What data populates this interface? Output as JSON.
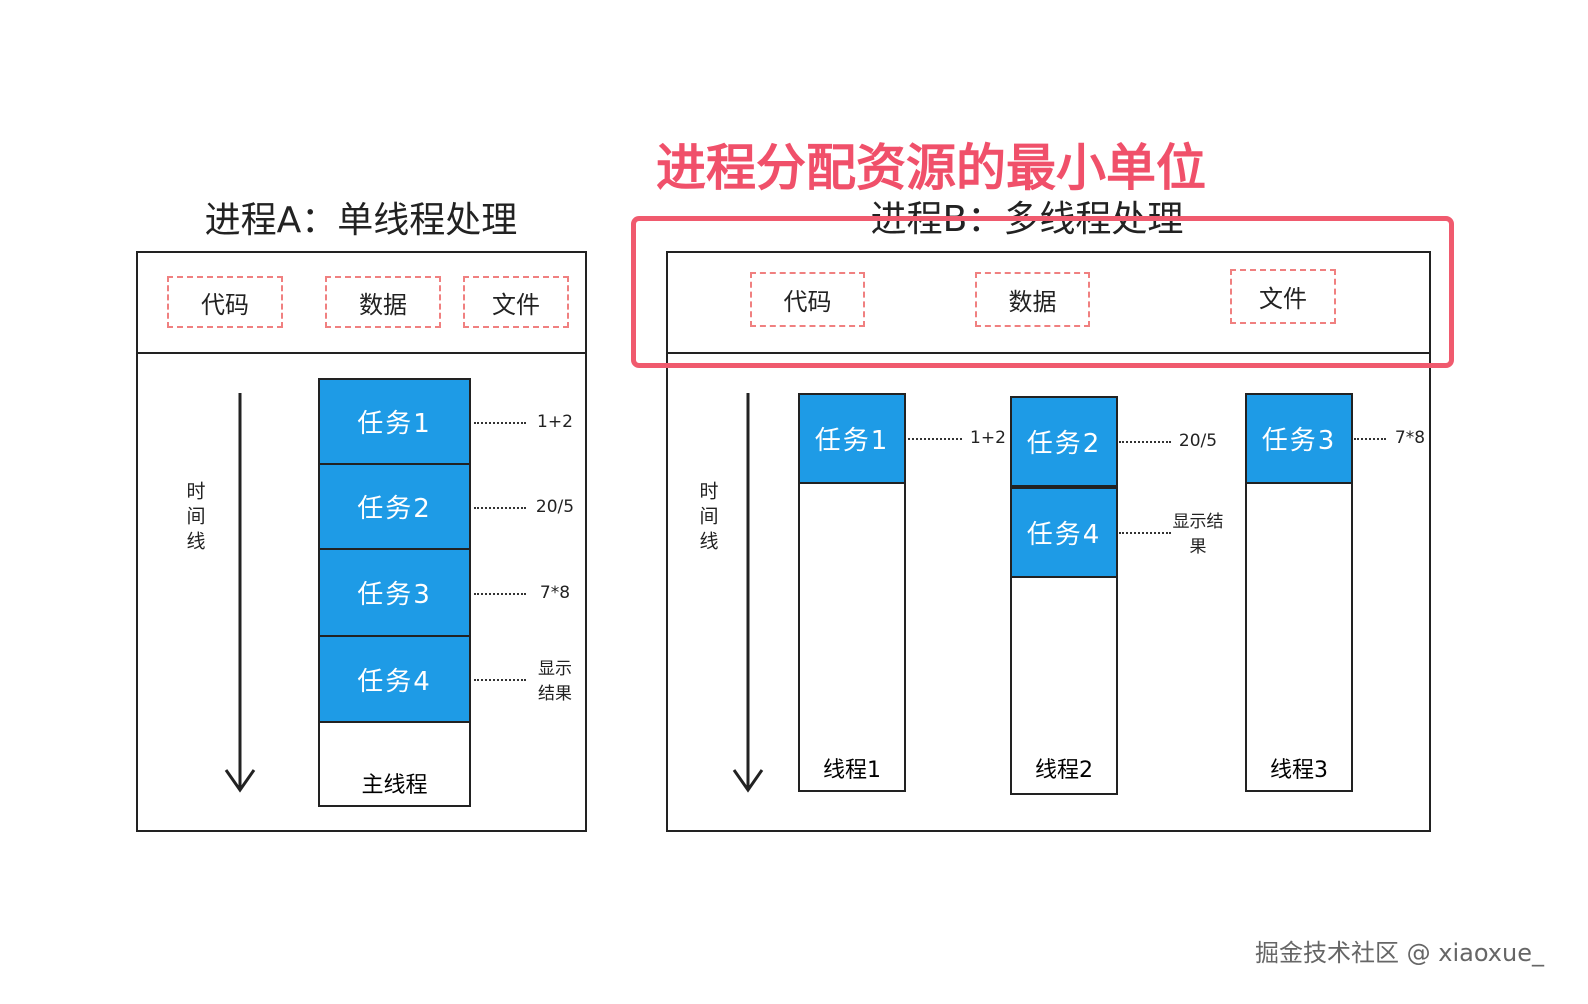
{
  "annotation": "进程分配资源的最小单位",
  "process_a": {
    "title": "进程A：单线程处理",
    "resources": [
      "代码",
      "数据",
      "文件"
    ],
    "timeline": "时间线",
    "tasks": [
      {
        "label": "任务1",
        "note": "1+2"
      },
      {
        "label": "任务2",
        "note": "20/5"
      },
      {
        "label": "任务3",
        "note": "7*8"
      },
      {
        "label": "任务4",
        "note": "显示结果"
      }
    ],
    "thread": "主线程"
  },
  "process_b": {
    "title": "进程B：多线程处理",
    "resources": [
      "代码",
      "数据",
      "文件"
    ],
    "timeline": "时间线",
    "threads": [
      {
        "label": "线程1",
        "tasks": [
          {
            "label": "任务1",
            "note": "1+2"
          }
        ]
      },
      {
        "label": "线程2",
        "tasks": [
          {
            "label": "任务2",
            "note": "20/5"
          },
          {
            "label": "任务4",
            "note": "显示结果"
          }
        ]
      },
      {
        "label": "线程3",
        "tasks": [
          {
            "label": "任务3",
            "note": "7*8"
          }
        ]
      }
    ]
  },
  "watermark": "掘金技术社区 @ xiaoxue_"
}
